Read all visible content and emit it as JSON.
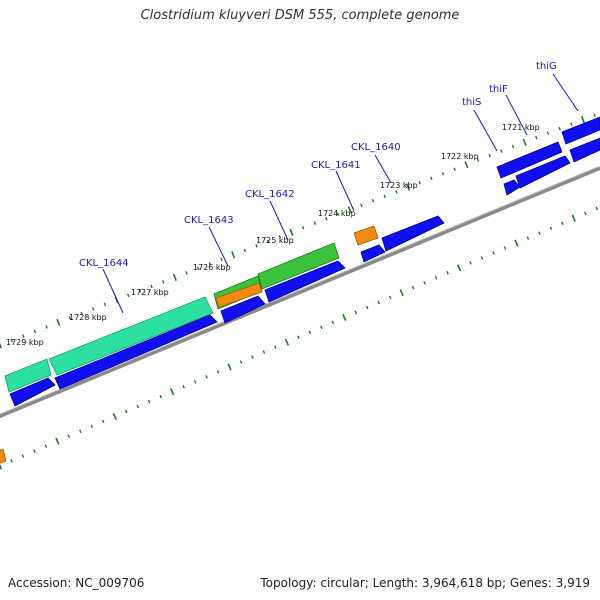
{
  "title": "Clostridium kluyveri DSM 555, complete genome",
  "footer": {
    "accession": "Accession: NC_009706",
    "topology": "Topology: circular; Length: 3,964,618 bp; Genes: 3,919"
  },
  "colors": {
    "backbone": "#8a8a8a",
    "tick": "#1f7a1f",
    "cds_blue": "#1010ee",
    "gene_teal": "#2ee0a0",
    "gene_green": "#3cc23c",
    "gene_orange": "#f08a10"
  },
  "kbp_labels": [
    "1721 kbp",
    "1722 kbp",
    "1723 kbp",
    "1724 kbp",
    "1725 kbp",
    "1726 kbp",
    "1727 kbp",
    "1728 kbp",
    "1729 kbp"
  ],
  "gene_labels": [
    "thiG",
    "thiF",
    "thiS",
    "CKL_1640",
    "CKL_1641",
    "CKL_1642",
    "CKL_1643",
    "CKL_1644"
  ]
}
